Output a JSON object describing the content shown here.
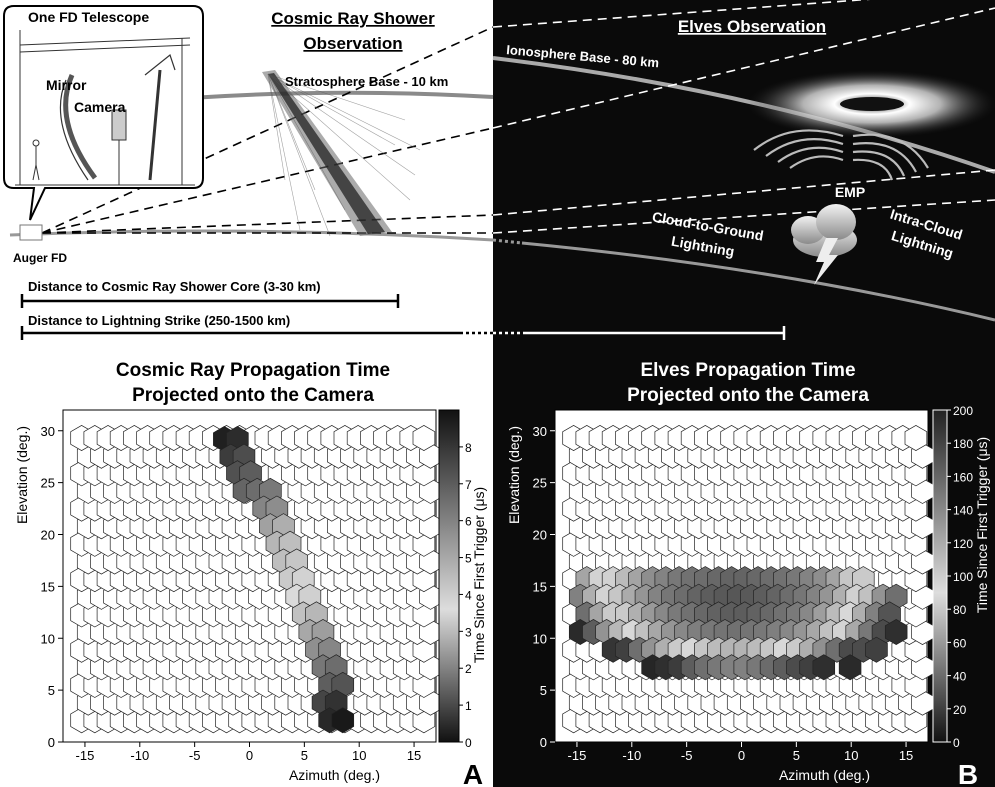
{
  "top_left": {
    "callout_title": "One FD Telescope",
    "mirror_label": "Mirror",
    "camera_label": "Camera",
    "auger_label": "Auger FD",
    "title_line1": "Cosmic Ray Shower",
    "title_line2": "Observation",
    "stratosphere_label": "Stratosphere Base - 10 km",
    "distance_cosmic": "Distance to Cosmic Ray Shower Core (3-30 km)",
    "distance_lightning": "Distance to Lightning Strike (250-1500 km)"
  },
  "top_right": {
    "title": "Elves Observation",
    "ionosphere_label": "Ionosphere Base - 80 km",
    "emp_label": "EMP",
    "cg_line1": "Cloud-to-Ground",
    "cg_line2": "Lightning",
    "ic_line1": "Intra-Cloud",
    "ic_line2": "Lightning"
  },
  "panel_a": {
    "title_line1": "Cosmic Ray Propagation Time",
    "title_line2": "Projected onto the Camera",
    "letter": "A"
  },
  "panel_b": {
    "title_line1": "Elves Propagation Time",
    "title_line2": "Projected onto the Camera",
    "letter": "B"
  },
  "chart_data": [
    {
      "type": "heatmap",
      "title": "Cosmic Ray Propagation Time Projected onto the Camera",
      "xlabel": "Azimuth (deg.)",
      "ylabel": "Elevation (deg.)",
      "colorbar_label": "Time Since First Trigger (μs)",
      "xlim": [
        -17,
        17
      ],
      "ylim": [
        0,
        32
      ],
      "xticks": [
        -15,
        -10,
        -5,
        0,
        5,
        10,
        15
      ],
      "yticks": [
        0,
        5,
        10,
        15,
        20,
        25,
        30
      ],
      "colorbar_ticks": [
        0,
        1,
        2,
        3,
        4,
        5,
        6,
        7,
        8
      ],
      "colorbar_range": [
        0,
        9
      ],
      "cells": [
        [
          -2.3,
          29.2,
          8.7
        ],
        [
          -1.1,
          29.2,
          8.4
        ],
        [
          -1.7,
          27.5,
          8.0
        ],
        [
          -0.5,
          27.5,
          7.6
        ],
        [
          -1.1,
          25.9,
          7.5
        ],
        [
          0.1,
          25.9,
          7.2
        ],
        [
          -0.5,
          24.2,
          7.0
        ],
        [
          0.7,
          24.2,
          6.8
        ],
        [
          1.9,
          24.2,
          6.5
        ],
        [
          1.3,
          22.5,
          6.2
        ],
        [
          2.5,
          22.5,
          6.0
        ],
        [
          1.9,
          20.8,
          5.5
        ],
        [
          3.1,
          20.8,
          5.2
        ],
        [
          2.5,
          19.1,
          5.0
        ],
        [
          3.7,
          19.1,
          4.8
        ],
        [
          3.1,
          17.4,
          4.8
        ],
        [
          4.3,
          17.4,
          4.6
        ],
        [
          3.7,
          15.7,
          4.5
        ],
        [
          4.9,
          15.7,
          4.3
        ],
        [
          4.3,
          14.0,
          4.0
        ],
        [
          5.5,
          14.0,
          3.8
        ],
        [
          4.9,
          12.3,
          3.5
        ],
        [
          6.1,
          12.3,
          3.3
        ],
        [
          5.5,
          10.6,
          3.0
        ],
        [
          6.7,
          10.6,
          2.8
        ],
        [
          6.1,
          8.9,
          2.5
        ],
        [
          7.3,
          8.9,
          2.3
        ],
        [
          6.7,
          7.2,
          2.0
        ],
        [
          7.9,
          7.2,
          1.8
        ],
        [
          7.3,
          5.5,
          1.5
        ],
        [
          8.5,
          5.5,
          1.3
        ],
        [
          6.7,
          3.8,
          1.0
        ],
        [
          7.9,
          3.8,
          0.6
        ],
        [
          7.3,
          2.1,
          0.4
        ],
        [
          8.5,
          2.1,
          0.1
        ]
      ]
    },
    {
      "type": "heatmap",
      "title": "Elves Propagation Time Projected onto the Camera",
      "xlabel": "Azimuth (deg.)",
      "ylabel": "Elevation (deg.)",
      "colorbar_label": "Time Since First Trigger (μs)",
      "xlim": [
        -17,
        17
      ],
      "ylim": [
        0,
        32
      ],
      "xticks": [
        -15,
        -10,
        -5,
        0,
        5,
        10,
        15
      ],
      "yticks": [
        0,
        5,
        10,
        15,
        20,
        25,
        30
      ],
      "colorbar_ticks": [
        0,
        20,
        40,
        60,
        80,
        100,
        120,
        140,
        160,
        180,
        200
      ],
      "colorbar_range": [
        0,
        200
      ],
      "cells": [
        [
          -14.1,
          15.7,
          120
        ],
        [
          -12.9,
          15.7,
          95
        ],
        [
          -11.7,
          15.7,
          85
        ],
        [
          -10.5,
          15.7,
          75
        ],
        [
          -9.3,
          15.7,
          65
        ],
        [
          -8.1,
          15.7,
          55
        ],
        [
          -6.9,
          15.7,
          50
        ],
        [
          -5.7,
          15.7,
          45
        ],
        [
          -4.5,
          15.7,
          42
        ],
        [
          -3.3,
          15.7,
          40
        ],
        [
          -2.1,
          15.7,
          38
        ],
        [
          -0.9,
          15.7,
          36
        ],
        [
          0.3,
          15.7,
          36
        ],
        [
          1.5,
          15.7,
          38
        ],
        [
          2.7,
          15.7,
          40
        ],
        [
          3.9,
          15.7,
          42
        ],
        [
          5.1,
          15.7,
          45
        ],
        [
          6.3,
          15.7,
          50
        ],
        [
          7.5,
          15.7,
          55
        ],
        [
          8.7,
          15.7,
          65
        ],
        [
          9.9,
          15.7,
          80
        ],
        [
          11.1,
          15.7,
          100
        ],
        [
          -14.7,
          14.0,
          140
        ],
        [
          -13.5,
          14.0,
          115
        ],
        [
          -12.3,
          14.0,
          95
        ],
        [
          -11.1,
          14.0,
          80
        ],
        [
          -9.9,
          14.0,
          68
        ],
        [
          -8.7,
          14.0,
          58
        ],
        [
          -7.5,
          14.0,
          50
        ],
        [
          -6.3,
          14.0,
          44
        ],
        [
          -5.1,
          14.0,
          40
        ],
        [
          -3.9,
          14.0,
          36
        ],
        [
          -2.7,
          14.0,
          33
        ],
        [
          -1.5,
          14.0,
          31
        ],
        [
          -0.3,
          14.0,
          30
        ],
        [
          0.9,
          14.0,
          31
        ],
        [
          2.1,
          14.0,
          33
        ],
        [
          3.3,
          14.0,
          36
        ],
        [
          4.5,
          14.0,
          40
        ],
        [
          5.7,
          14.0,
          44
        ],
        [
          6.9,
          14.0,
          50
        ],
        [
          8.1,
          14.0,
          58
        ],
        [
          9.3,
          14.0,
          70
        ],
        [
          10.5,
          14.0,
          85
        ],
        [
          11.7,
          14.0,
          105
        ],
        [
          12.9,
          14.0,
          130
        ],
        [
          14.1,
          14.0,
          150
        ],
        [
          -14.1,
          12.3,
          150
        ],
        [
          -12.9,
          12.3,
          120
        ],
        [
          -11.7,
          12.3,
          100
        ],
        [
          -10.5,
          12.3,
          82
        ],
        [
          -9.3,
          12.3,
          70
        ],
        [
          -8.1,
          12.3,
          60
        ],
        [
          -6.9,
          12.3,
          52
        ],
        [
          -5.7,
          12.3,
          46
        ],
        [
          -4.5,
          12.3,
          42
        ],
        [
          -3.3,
          12.3,
          38
        ],
        [
          -2.1,
          12.3,
          35
        ],
        [
          -0.9,
          12.3,
          33
        ],
        [
          0.3,
          12.3,
          33
        ],
        [
          1.5,
          12.3,
          35
        ],
        [
          2.7,
          12.3,
          38
        ],
        [
          3.9,
          12.3,
          42
        ],
        [
          5.1,
          12.3,
          46
        ],
        [
          6.3,
          12.3,
          52
        ],
        [
          7.5,
          12.3,
          62
        ],
        [
          8.7,
          12.3,
          75
        ],
        [
          9.9,
          12.3,
          92
        ],
        [
          11.1,
          12.3,
          115
        ],
        [
          12.3,
          12.3,
          140
        ],
        [
          13.5,
          12.3,
          165
        ],
        [
          -14.7,
          10.6,
          10
        ],
        [
          -13.5,
          10.6,
          160
        ],
        [
          -12.3,
          10.6,
          130
        ],
        [
          -11.1,
          10.6,
          110
        ],
        [
          -9.9,
          10.6,
          92
        ],
        [
          -8.7,
          10.6,
          78
        ],
        [
          -7.5,
          10.6,
          66
        ],
        [
          -6.3,
          10.6,
          58
        ],
        [
          -5.1,
          10.6,
          52
        ],
        [
          -3.9,
          10.6,
          48
        ],
        [
          -2.7,
          10.6,
          45
        ],
        [
          -1.5,
          10.6,
          43
        ],
        [
          -0.3,
          10.6,
          42
        ],
        [
          0.9,
          10.6,
          43
        ],
        [
          2.1,
          10.6,
          45
        ],
        [
          3.3,
          10.6,
          48
        ],
        [
          4.5,
          10.6,
          52
        ],
        [
          5.7,
          10.6,
          58
        ],
        [
          6.9,
          10.6,
          66
        ],
        [
          8.1,
          10.6,
          78
        ],
        [
          9.3,
          10.6,
          95
        ],
        [
          10.5,
          10.6,
          118
        ],
        [
          11.7,
          10.6,
          145
        ],
        [
          12.9,
          10.6,
          170
        ],
        [
          14.1,
          10.6,
          12
        ],
        [
          -11.7,
          8.9,
          15
        ],
        [
          -10.5,
          8.9,
          20
        ],
        [
          -9.3,
          8.9,
          150
        ],
        [
          -8.1,
          8.9,
          130
        ],
        [
          -6.9,
          8.9,
          115
        ],
        [
          -5.7,
          8.9,
          100
        ],
        [
          -4.5,
          8.9,
          88
        ],
        [
          -3.3,
          8.9,
          80
        ],
        [
          -2.1,
          8.9,
          75
        ],
        [
          -0.9,
          8.9,
          72
        ],
        [
          0.3,
          8.9,
          72
        ],
        [
          1.5,
          8.9,
          75
        ],
        [
          2.7,
          8.9,
          80
        ],
        [
          3.9,
          8.9,
          88
        ],
        [
          5.1,
          8.9,
          100
        ],
        [
          6.3,
          8.9,
          115
        ],
        [
          7.5,
          8.9,
          132
        ],
        [
          8.7,
          8.9,
          150
        ],
        [
          9.9,
          8.9,
          170
        ],
        [
          11.1,
          8.9,
          25
        ],
        [
          12.3,
          8.9,
          20
        ],
        [
          -8.1,
          7.2,
          8
        ],
        [
          -6.9,
          7.2,
          12
        ],
        [
          -5.7,
          7.2,
          18
        ],
        [
          -4.5,
          7.2,
          160
        ],
        [
          -3.3,
          7.2,
          150
        ],
        [
          -2.1,
          7.2,
          145
        ],
        [
          -0.9,
          7.2,
          140
        ],
        [
          0.3,
          7.2,
          140
        ],
        [
          1.5,
          7.2,
          145
        ],
        [
          2.7,
          7.2,
          152
        ],
        [
          3.9,
          7.2,
          160
        ],
        [
          5.1,
          7.2,
          25
        ],
        [
          6.3,
          7.2,
          20
        ],
        [
          7.5,
          7.2,
          12
        ],
        [
          9.9,
          7.2,
          10
        ]
      ]
    }
  ]
}
